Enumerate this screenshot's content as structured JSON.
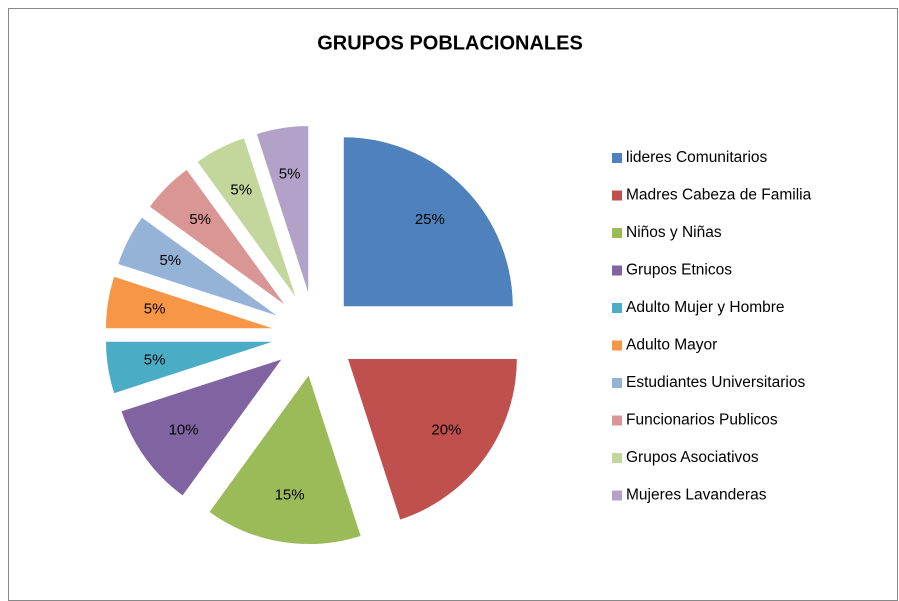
{
  "chart_data": {
    "type": "pie",
    "title": "GRUPOS POBLACIONALES",
    "categories": [
      "lideres Comunitarios",
      "Madres Cabeza de Familia",
      "Niños y Niñas",
      "Grupos Etnicos",
      "Adulto Mujer y Hombre",
      "Adulto Mayor",
      "Estudiantes Universitarios",
      "Funcionarios Publicos",
      "Grupos Asociativos",
      "Mujeres Lavanderas"
    ],
    "values": [
      25,
      20,
      15,
      10,
      5,
      5,
      5,
      5,
      5,
      5
    ],
    "value_labels": [
      "25%",
      "20%",
      "15%",
      "10%",
      "5%",
      "5%",
      "5%",
      "5%",
      "5%",
      "5%"
    ],
    "colors": [
      "#4f81bd",
      "#c0504d",
      "#9bbb59",
      "#8064a2",
      "#4bacc6",
      "#f79646",
      "#95b3d7",
      "#d99694",
      "#c3d69b",
      "#b3a2c7"
    ],
    "legend": "right"
  }
}
